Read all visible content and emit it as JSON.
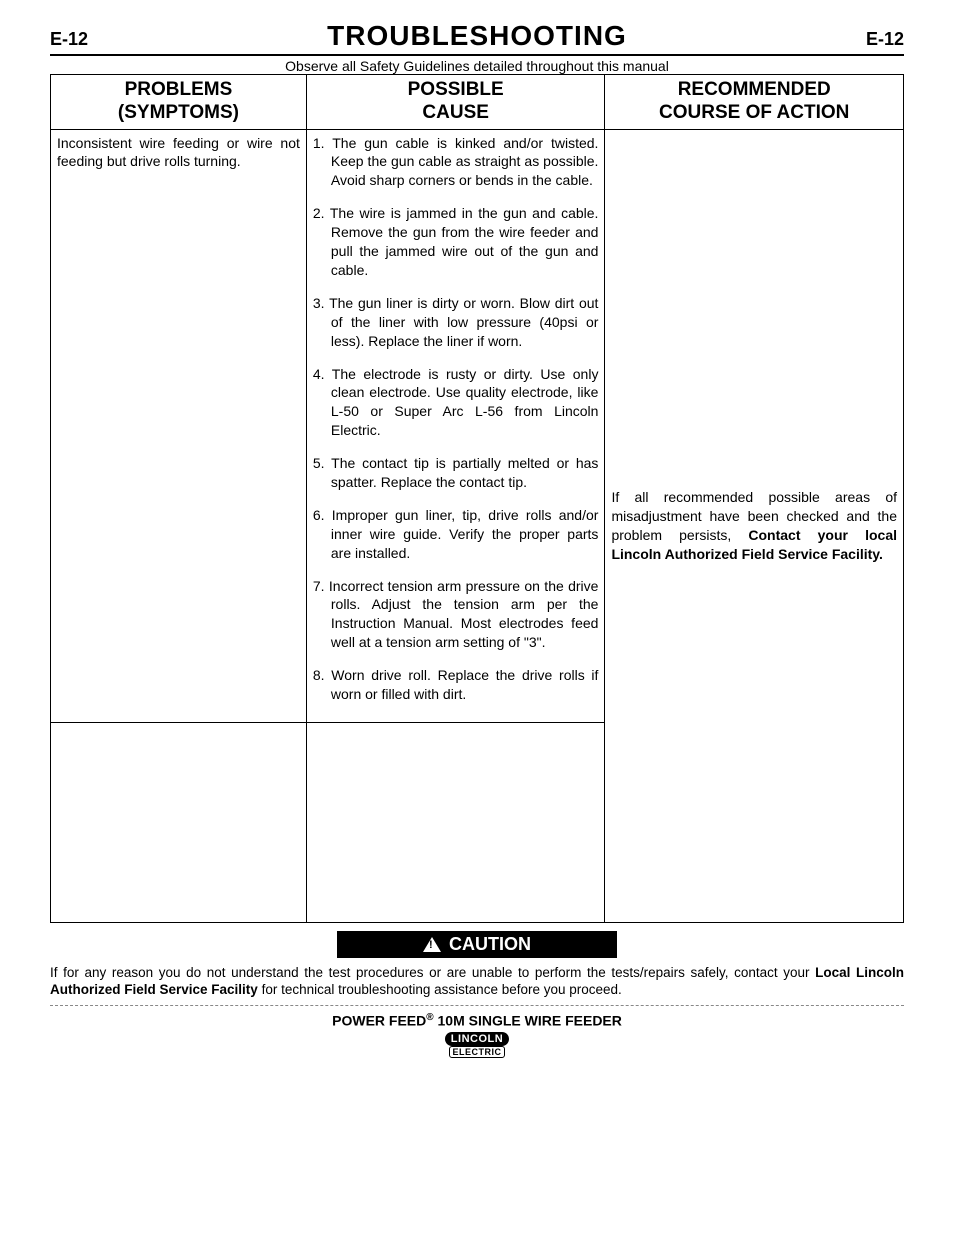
{
  "page": {
    "left_num": "E-12",
    "right_num": "E-12",
    "title": "TROUBLESHOOTING",
    "safety_line": "Observe all Safety Guidelines detailed throughout this manual"
  },
  "table": {
    "headers": {
      "col1_line1": "PROBLEMS",
      "col1_line2": "(SYMPTOMS)",
      "col2_line1": "POSSIBLE",
      "col2_line2": "CAUSE",
      "col3_line1": "RECOMMENDED",
      "col3_line2": "COURSE OF ACTION"
    },
    "row1": {
      "symptom": "Inconsistent wire feeding or wire not feeding but drive rolls turning.",
      "causes": [
        "1. The gun cable is kinked and/or twisted. Keep the gun cable as straight as possible. Avoid sharp corners or bends in the cable.",
        "2. The wire is jammed in the gun and cable. Remove the gun from the wire feeder and pull the jammed wire out of the gun and cable.",
        "3. The gun liner is dirty or worn. Blow dirt out of the liner with low pressure (40psi or less). Replace the liner if worn.",
        "4. The electrode is rusty or dirty. Use only clean electrode. Use quality electrode, like L-50 or Super Arc L-56 from Lincoln Electric.",
        "5. The contact tip is partially melted or has spatter. Replace the contact tip.",
        "6. Improper gun liner, tip, drive rolls and/or inner wire guide. Verify the proper parts are installed.",
        "7. Incorrect tension arm pressure on the drive rolls. Adjust the tension arm per the Instruction Manual. Most electrodes feed well at a tension arm setting of \"3\".",
        "8. Worn drive roll. Replace the drive rolls if worn or filled with dirt."
      ],
      "recommendation_pre": "If all recommended possible areas of misadjustment have been checked and the problem persists, ",
      "recommendation_bold": "Contact your local Lincoln Authorized Field Service Facility."
    }
  },
  "caution": {
    "label": "CAUTION",
    "text_pre": "If for any reason you do not understand the test procedures or are unable to perform the tests/repairs safely, contact your ",
    "text_bold": "Local Lincoln Authorized Field Service Facility",
    "text_post": " for technical troubleshooting assistance before you proceed."
  },
  "footer": {
    "line1_pre": "POWER FEED",
    "line1_reg": "®",
    "line1_post": " 10M SINGLE WIRE FEEDER",
    "logo_top": "LINCOLN",
    "logo_bottom": "ELECTRIC"
  },
  "colors": {
    "text": "#000000",
    "background": "#ffffff",
    "caution_bg": "#000000",
    "caution_fg": "#ffffff",
    "dash": "#888888"
  },
  "fonts": {
    "body_family": "Arial, Helvetica, sans-serif",
    "title_size_pt": 21,
    "header_size_pt": 14,
    "body_size_pt": 10.5,
    "caution_label_pt": 13
  }
}
